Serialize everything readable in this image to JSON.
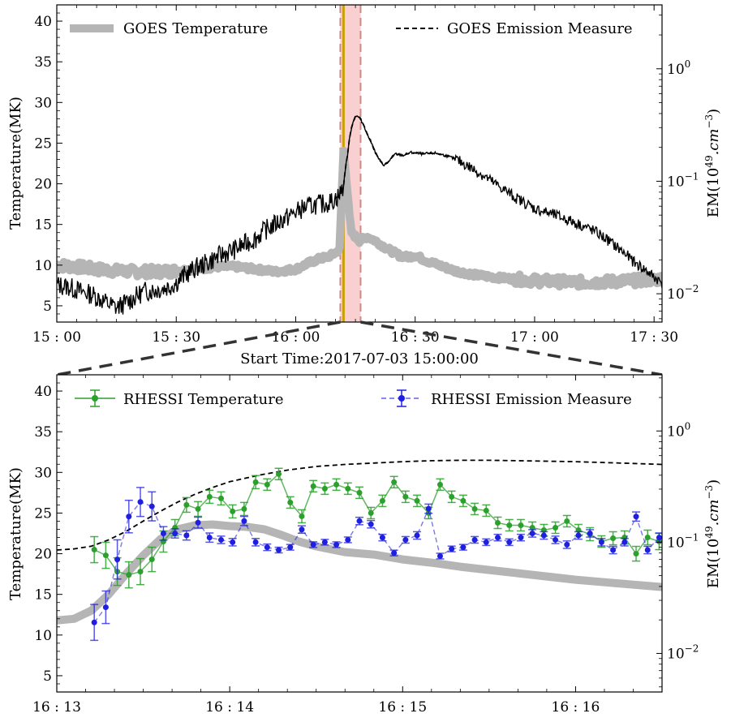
{
  "chart_data": [
    {
      "type": "line",
      "panel": "top",
      "xlabel": "Start Time:2017-07-03 15:00:00",
      "ylabel_left": "Temperature(MK)",
      "ylabel_right": "EM(10^{49}.cm^{-3})",
      "ylabel_right_parts": {
        "base": "EM(10",
        "exp": "49",
        "mid": ".cm",
        "exp2": "−3",
        "end": ")"
      },
      "xlim_minutes": [
        0,
        152
      ],
      "x_ticks": [
        {
          "minute": 0,
          "label": "15 : 00"
        },
        {
          "minute": 30,
          "label": "15 : 30"
        },
        {
          "minute": 60,
          "label": "16 : 00"
        },
        {
          "minute": 90,
          "label": "16 : 30"
        },
        {
          "minute": 120,
          "label": "17 : 00"
        },
        {
          "minute": 150,
          "label": "17 : 30"
        }
      ],
      "ylim_left": [
        3,
        42
      ],
      "y_ticks_left": [
        5,
        10,
        15,
        20,
        25,
        30,
        35,
        40
      ],
      "yscale_right": "log",
      "ylim_right": [
        0.0056,
        3.7
      ],
      "y_ticks_right": [
        {
          "value": 0.01,
          "base": "10",
          "exp": "−2"
        },
        {
          "value": 0.1,
          "base": "10",
          "exp": "−1"
        },
        {
          "value": 1,
          "base": "10",
          "exp": "0"
        }
      ],
      "shaded_band_minutes": [
        71.2,
        76.3
      ],
      "vertical_line_minute": 72.0,
      "legend": {
        "left": "GOES Temperature",
        "right": "GOES Emission Measure"
      },
      "series": [
        {
          "name": "GOES Temperature",
          "axis": "left",
          "color": "#b5b5b5",
          "x": [
            0,
            5,
            10,
            15,
            20,
            25,
            30,
            35,
            40,
            45,
            50,
            55,
            60,
            63,
            66,
            68,
            70,
            71,
            71.5,
            72,
            72.5,
            73,
            73.5,
            74,
            75,
            76,
            78,
            80,
            83,
            86,
            88,
            90,
            93,
            96,
            100,
            105,
            110,
            115,
            120,
            125,
            130,
            135,
            140,
            145,
            152
          ],
          "y": [
            10,
            9.8,
            9.5,
            9.3,
            9.2,
            9.2,
            9.3,
            9.5,
            9.8,
            9.8,
            9.5,
            9.2,
            9.5,
            10.2,
            10.8,
            11,
            11.5,
            12,
            18,
            24,
            22,
            19,
            16,
            14,
            13.5,
            13,
            13.5,
            13,
            12,
            11.2,
            11,
            11.2,
            10.5,
            10,
            9.3,
            8.8,
            8.5,
            8.3,
            8.1,
            8.0,
            7.9,
            7.9,
            8.0,
            8.1,
            8.3
          ]
        },
        {
          "name": "GOES Emission Measure",
          "axis": "right",
          "color": "#000000",
          "dash": "dashed",
          "x": [
            0,
            3,
            6,
            9,
            12,
            15,
            18,
            20,
            22,
            25,
            28,
            30,
            32,
            35,
            38,
            40,
            45,
            50,
            52,
            55,
            58,
            60,
            62,
            65,
            67,
            69,
            71,
            72,
            73,
            74,
            75,
            76,
            77,
            78,
            79,
            80,
            81,
            82,
            83,
            84,
            85,
            87,
            89,
            92,
            95,
            98,
            100,
            105,
            110,
            115,
            120,
            125,
            130,
            135,
            140,
            145,
            150,
            152
          ],
          "y": [
            0.012,
            0.0115,
            0.0105,
            0.0098,
            0.0085,
            0.0075,
            0.0085,
            0.0095,
            0.0105,
            0.0108,
            0.0115,
            0.0125,
            0.0145,
            0.017,
            0.019,
            0.021,
            0.025,
            0.031,
            0.036,
            0.042,
            0.048,
            0.053,
            0.058,
            0.062,
            0.063,
            0.066,
            0.075,
            0.09,
            0.17,
            0.3,
            0.38,
            0.37,
            0.32,
            0.26,
            0.22,
            0.18,
            0.155,
            0.14,
            0.145,
            0.16,
            0.175,
            0.17,
            0.18,
            0.175,
            0.178,
            0.168,
            0.158,
            0.125,
            0.095,
            0.072,
            0.057,
            0.05,
            0.043,
            0.036,
            0.027,
            0.019,
            0.014,
            0.0125
          ]
        }
      ]
    },
    {
      "type": "line",
      "panel": "bottom",
      "ylabel_left": "Temperature(MK)",
      "ylabel_right": "EM(10^{49}.cm^{-3})",
      "xlim_seconds": [
        0,
        210
      ],
      "x_ticks": [
        {
          "second": 0,
          "label": "16 : 13"
        },
        {
          "second": 60,
          "label": "16 : 14"
        },
        {
          "second": 120,
          "label": "16 : 15"
        },
        {
          "second": 180,
          "label": "16 : 16"
        }
      ],
      "ylim_left": [
        3,
        42
      ],
      "y_ticks_left": [
        5,
        10,
        15,
        20,
        25,
        30,
        35,
        40
      ],
      "yscale_right": "log",
      "ylim_right": [
        0.0045,
        3.2
      ],
      "y_ticks_right": [
        {
          "value": 0.01,
          "base": "10",
          "exp": "−2"
        },
        {
          "value": 0.1,
          "base": "10",
          "exp": "−1"
        },
        {
          "value": 1,
          "base": "10",
          "exp": "0"
        }
      ],
      "legend": {
        "left": "RHESSI Temperature",
        "right": "RHESSI Emission Measure"
      },
      "series": [
        {
          "name": "GOES Temperature",
          "axis": "left",
          "color": "#b5b5b5",
          "x": [
            0,
            6,
            12,
            18,
            24,
            30,
            36,
            42,
            48,
            54,
            60,
            66,
            72,
            78,
            84,
            90,
            100,
            110,
            120,
            130,
            140,
            150,
            160,
            170,
            180,
            190,
            200,
            210
          ],
          "y": [
            11.8,
            12.0,
            13.0,
            15.0,
            17.5,
            19.8,
            21.8,
            23.0,
            23.5,
            23.6,
            23.4,
            23.3,
            23.0,
            22.3,
            21.5,
            20.9,
            20.2,
            19.9,
            19.3,
            18.9,
            18.4,
            18.0,
            17.6,
            17.2,
            16.8,
            16.5,
            16.2,
            15.9
          ]
        },
        {
          "name": "GOES Emission Measure",
          "axis": "right",
          "color": "#000000",
          "dash": "dashed",
          "x": [
            0,
            6,
            12,
            18,
            24,
            30,
            36,
            42,
            48,
            54,
            60,
            70,
            80,
            90,
            100,
            110,
            120,
            130,
            140,
            150,
            160,
            170,
            180,
            190,
            200,
            210
          ],
          "y": [
            0.085,
            0.087,
            0.092,
            0.105,
            0.125,
            0.155,
            0.19,
            0.23,
            0.27,
            0.31,
            0.35,
            0.4,
            0.445,
            0.48,
            0.5,
            0.515,
            0.53,
            0.54,
            0.545,
            0.545,
            0.54,
            0.535,
            0.53,
            0.52,
            0.51,
            0.5
          ]
        },
        {
          "name": "RHESSI Temperature",
          "axis": "left",
          "color": "#2ca02c",
          "x": [
            13,
            17,
            21,
            25,
            29,
            33,
            37,
            41,
            45,
            49,
            53,
            57,
            61,
            65,
            69,
            73,
            77,
            81,
            85,
            89,
            93,
            97,
            101,
            105,
            109,
            113,
            117,
            121,
            125,
            129,
            133,
            137,
            141,
            145,
            149,
            153,
            157,
            161,
            165,
            169,
            173,
            177,
            181,
            185,
            189,
            193,
            197,
            201,
            205,
            209
          ],
          "y": [
            20.5,
            19.8,
            17.8,
            17.4,
            17.8,
            19.3,
            21.5,
            23.2,
            26.0,
            25.5,
            27.0,
            26.8,
            25.2,
            25.5,
            28.8,
            28.5,
            29.8,
            26.3,
            24.6,
            28.3,
            28.0,
            28.5,
            28.0,
            27.5,
            25.0,
            26.5,
            28.8,
            27.0,
            26.5,
            25.0,
            28.5,
            27.0,
            26.5,
            25.5,
            25.3,
            23.8,
            23.5,
            23.5,
            23.2,
            22.9,
            23.2,
            24.0,
            22.9,
            22.4,
            21.5,
            21.9,
            22.0,
            20.0,
            22.0,
            21.5
          ],
          "err": [
            1.6,
            1.6,
            1.7,
            1.6,
            1.6,
            1.5,
            1.3,
            1.0,
            0.9,
            0.9,
            0.8,
            0.8,
            0.8,
            0.8,
            0.8,
            0.7,
            0.7,
            0.7,
            0.8,
            0.7,
            0.7,
            0.7,
            0.7,
            0.7,
            0.7,
            0.7,
            0.7,
            0.7,
            0.7,
            0.7,
            0.7,
            0.7,
            0.7,
            0.7,
            0.7,
            0.7,
            0.7,
            0.7,
            0.7,
            0.7,
            0.7,
            0.7,
            0.7,
            0.8,
            0.7,
            0.8,
            0.8,
            0.9,
            0.9,
            1.0
          ]
        },
        {
          "name": "RHESSI Emission Measure",
          "axis": "right",
          "color": "#1f1fe0",
          "x": [
            13,
            17,
            21,
            25,
            29,
            33,
            37,
            41,
            45,
            49,
            53,
            57,
            61,
            65,
            69,
            73,
            77,
            81,
            85,
            89,
            93,
            97,
            101,
            105,
            109,
            113,
            117,
            121,
            125,
            129,
            133,
            137,
            141,
            145,
            149,
            153,
            157,
            161,
            165,
            169,
            173,
            177,
            181,
            185,
            189,
            193,
            197,
            201,
            205,
            209
          ],
          "y": [
            0.019,
            0.026,
            0.07,
            0.17,
            0.23,
            0.21,
            0.12,
            0.12,
            0.115,
            0.15,
            0.11,
            0.105,
            0.1,
            0.155,
            0.1,
            0.09,
            0.085,
            0.09,
            0.13,
            0.095,
            0.1,
            0.095,
            0.105,
            0.155,
            0.145,
            0.11,
            0.08,
            0.105,
            0.115,
            0.2,
            0.075,
            0.087,
            0.09,
            0.105,
            0.1,
            0.11,
            0.1,
            0.11,
            0.12,
            0.115,
            0.105,
            0.095,
            0.115,
            0.12,
            0.1,
            0.085,
            0.1,
            0.17,
            0.085,
            0.11
          ],
          "err_factor": [
            1.45,
            1.4,
            1.5,
            1.4,
            1.35,
            1.35,
            1.15,
            1.1,
            1.1,
            1.12,
            1.1,
            1.08,
            1.08,
            1.1,
            1.08,
            1.07,
            1.06,
            1.06,
            1.08,
            1.06,
            1.06,
            1.06,
            1.06,
            1.08,
            1.08,
            1.07,
            1.06,
            1.07,
            1.08,
            1.1,
            1.06,
            1.06,
            1.06,
            1.07,
            1.07,
            1.07,
            1.07,
            1.07,
            1.08,
            1.08,
            1.08,
            1.08,
            1.08,
            1.08,
            1.08,
            1.08,
            1.08,
            1.1,
            1.08,
            1.1
          ]
        }
      ]
    }
  ]
}
